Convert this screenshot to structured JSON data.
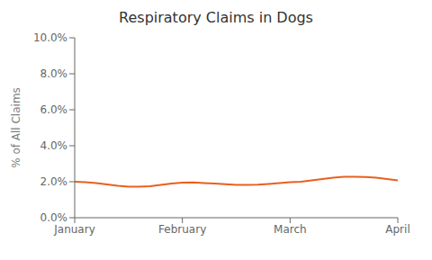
{
  "chart_data": {
    "type": "line",
    "title": "Respiratory Claims in Dogs",
    "ylabel": "% of All Claims",
    "x": [
      0,
      3,
      6,
      9,
      12,
      15,
      18,
      21,
      24,
      27,
      30,
      33,
      36,
      39,
      42,
      45,
      48,
      51,
      54,
      57,
      60,
      63,
      66,
      69,
      72,
      75,
      78,
      81,
      84,
      87,
      90
    ],
    "values": [
      0.02,
      0.0198,
      0.0193,
      0.0185,
      0.0178,
      0.0173,
      0.0172,
      0.0175,
      0.0182,
      0.019,
      0.0195,
      0.0196,
      0.0193,
      0.019,
      0.0186,
      0.0183,
      0.0182,
      0.0184,
      0.0188,
      0.0193,
      0.0197,
      0.02,
      0.0207,
      0.0215,
      0.0222,
      0.0227,
      0.0228,
      0.0226,
      0.0222,
      0.0215,
      0.0207
    ],
    "color": "#E8601C",
    "xlim": [
      0,
      90
    ],
    "ylim": [
      0.0,
      0.1
    ],
    "xticks": [
      {
        "value": 0,
        "label": "January"
      },
      {
        "value": 30,
        "label": "February"
      },
      {
        "value": 60,
        "label": "March"
      },
      {
        "value": 90,
        "label": "April"
      }
    ],
    "yticks": [
      {
        "value": 0.0,
        "label": "0.0%"
      },
      {
        "value": 0.02,
        "label": "2.0%"
      },
      {
        "value": 0.04,
        "label": "4.0%"
      },
      {
        "value": 0.06,
        "label": "6.0%"
      },
      {
        "value": 0.08,
        "label": "8.0%"
      },
      {
        "value": 0.1,
        "label": "10.0%"
      }
    ],
    "grid": false
  }
}
